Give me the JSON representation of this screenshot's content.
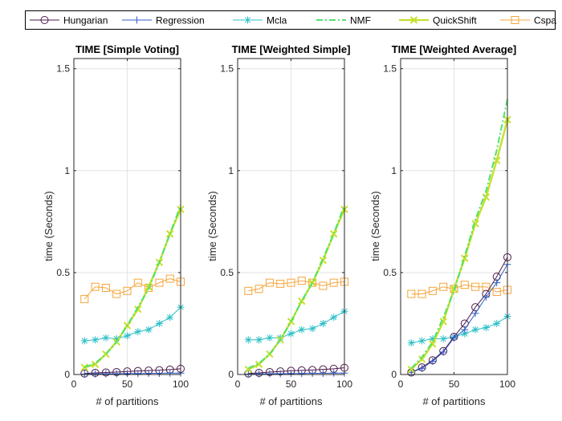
{
  "legend": {
    "entries": [
      {
        "label": "Hungarian",
        "color": "#4b1a4a",
        "marker": "circle",
        "dash": ""
      },
      {
        "label": "Regression",
        "color": "#2f5fc8",
        "marker": "plus",
        "dash": ""
      },
      {
        "label": "Mcla",
        "color": "#2ec0c8",
        "marker": "star",
        "dash": ""
      },
      {
        "label": "NMF",
        "color": "#4de36b",
        "marker": "none",
        "dash": "8,3,2,3"
      },
      {
        "label": "QuickShift",
        "color": "#c6e02c",
        "marker": "x",
        "dash": ""
      },
      {
        "label": "Cspa",
        "color": "#f5a53a",
        "marker": "square",
        "dash": ""
      }
    ]
  },
  "chart_data": [
    {
      "type": "line",
      "title": "TIME [Simple Voting]",
      "xlabel": "# of partitions",
      "ylabel": "time (Seconds)",
      "xlim": [
        0,
        100
      ],
      "ylim": [
        0,
        1.55
      ],
      "xticks": [
        0,
        50,
        100
      ],
      "yticks": [
        0,
        0.5,
        1,
        1.5
      ],
      "ytick_labels": [
        "0",
        "0.5",
        "1",
        "1.5"
      ],
      "grid": true,
      "x": [
        10,
        20,
        30,
        40,
        50,
        60,
        70,
        80,
        90,
        100
      ],
      "series": [
        {
          "name": "Hungarian",
          "values": [
            0.005,
            0.008,
            0.01,
            0.012,
            0.015,
            0.017,
            0.019,
            0.021,
            0.024,
            0.028
          ]
        },
        {
          "name": "Regression",
          "values": [
            0.002,
            0.003,
            0.004,
            0.004,
            0.005,
            0.005,
            0.006,
            0.006,
            0.007,
            0.007
          ]
        },
        {
          "name": "Mcla",
          "values": [
            0.165,
            0.17,
            0.18,
            0.175,
            0.19,
            0.21,
            0.22,
            0.25,
            0.28,
            0.33
          ]
        },
        {
          "name": "NMF",
          "values": [
            0.035,
            0.055,
            0.1,
            0.16,
            0.24,
            0.33,
            0.42,
            0.55,
            0.69,
            0.83
          ]
        },
        {
          "name": "QuickShift",
          "values": [
            0.035,
            0.05,
            0.1,
            0.16,
            0.24,
            0.32,
            0.43,
            0.55,
            0.69,
            0.81
          ]
        },
        {
          "name": "Cspa",
          "values": [
            0.37,
            0.43,
            0.425,
            0.395,
            0.41,
            0.45,
            0.425,
            0.45,
            0.47,
            0.455
          ]
        }
      ]
    },
    {
      "type": "line",
      "title": "TIME [Weighted Simple]",
      "xlabel": "# of partitions",
      "ylabel": "time (Seconds)",
      "xlim": [
        0,
        100
      ],
      "ylim": [
        0,
        1.55
      ],
      "xticks": [
        0,
        50,
        100
      ],
      "yticks": [
        0,
        0.5,
        1,
        1.5
      ],
      "ytick_labels": [
        "0",
        "0.5",
        "1",
        "1.5"
      ],
      "grid": true,
      "x": [
        10,
        20,
        30,
        40,
        50,
        60,
        70,
        80,
        90,
        100
      ],
      "series": [
        {
          "name": "Hungarian",
          "values": [
            0.005,
            0.008,
            0.012,
            0.015,
            0.018,
            0.02,
            0.022,
            0.025,
            0.028,
            0.033
          ]
        },
        {
          "name": "Regression",
          "values": [
            0.002,
            0.003,
            0.004,
            0.004,
            0.005,
            0.005,
            0.006,
            0.006,
            0.007,
            0.007
          ]
        },
        {
          "name": "Mcla",
          "values": [
            0.17,
            0.17,
            0.18,
            0.18,
            0.2,
            0.22,
            0.225,
            0.25,
            0.28,
            0.31
          ]
        },
        {
          "name": "NMF",
          "values": [
            0.03,
            0.055,
            0.1,
            0.17,
            0.26,
            0.36,
            0.45,
            0.57,
            0.69,
            0.83
          ]
        },
        {
          "name": "QuickShift",
          "values": [
            0.025,
            0.05,
            0.1,
            0.17,
            0.26,
            0.36,
            0.45,
            0.56,
            0.69,
            0.81
          ]
        },
        {
          "name": "Cspa",
          "values": [
            0.41,
            0.42,
            0.45,
            0.445,
            0.45,
            0.46,
            0.45,
            0.435,
            0.45,
            0.455
          ]
        }
      ]
    },
    {
      "type": "line",
      "title": "TIME [Weighted Average]",
      "xlabel": "# of partitions",
      "ylabel": "time (Seconds)",
      "xlim": [
        0,
        100
      ],
      "ylim": [
        0,
        1.55
      ],
      "xticks": [
        0,
        50,
        100
      ],
      "yticks": [
        0,
        0.5,
        1,
        1.5
      ],
      "ytick_labels": [
        "0",
        "0.5",
        "1",
        "1.5"
      ],
      "grid": true,
      "x": [
        10,
        20,
        30,
        40,
        50,
        60,
        70,
        80,
        90,
        100
      ],
      "series": [
        {
          "name": "Hungarian",
          "values": [
            0.01,
            0.035,
            0.07,
            0.115,
            0.185,
            0.25,
            0.33,
            0.395,
            0.48,
            0.575
          ]
        },
        {
          "name": "Regression",
          "values": [
            0.01,
            0.03,
            0.065,
            0.11,
            0.18,
            0.22,
            0.3,
            0.38,
            0.45,
            0.54
          ]
        },
        {
          "name": "Mcla",
          "values": [
            0.155,
            0.165,
            0.175,
            0.175,
            0.185,
            0.2,
            0.22,
            0.23,
            0.25,
            0.285
          ]
        },
        {
          "name": "NMF",
          "values": [
            0.03,
            0.085,
            0.16,
            0.28,
            0.41,
            0.58,
            0.76,
            0.9,
            1.1,
            1.35
          ]
        },
        {
          "name": "QuickShift",
          "values": [
            0.025,
            0.075,
            0.15,
            0.26,
            0.42,
            0.57,
            0.74,
            0.87,
            1.05,
            1.25
          ]
        },
        {
          "name": "Cspa",
          "values": [
            0.395,
            0.395,
            0.41,
            0.43,
            0.42,
            0.44,
            0.43,
            0.43,
            0.405,
            0.415
          ]
        }
      ]
    }
  ]
}
